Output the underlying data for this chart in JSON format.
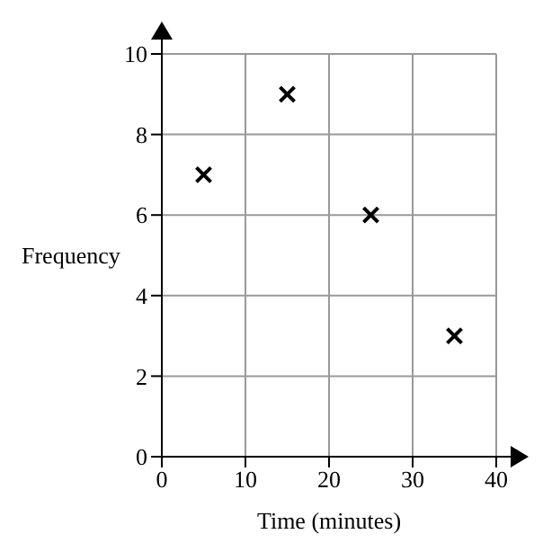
{
  "chart_data": {
    "type": "scatter",
    "xlabel": "Time (minutes)",
    "ylabel": "Frequency",
    "x": [
      5,
      15,
      25,
      35
    ],
    "values": [
      7,
      9,
      6,
      3
    ],
    "color": "#000000",
    "marker": "cross",
    "xlim": [
      0,
      40
    ],
    "xticks": [
      0,
      10,
      20,
      30,
      40
    ],
    "ylim": [
      0,
      10
    ],
    "yticks": [
      0,
      2,
      4,
      6,
      8,
      10
    ],
    "grid": true
  }
}
